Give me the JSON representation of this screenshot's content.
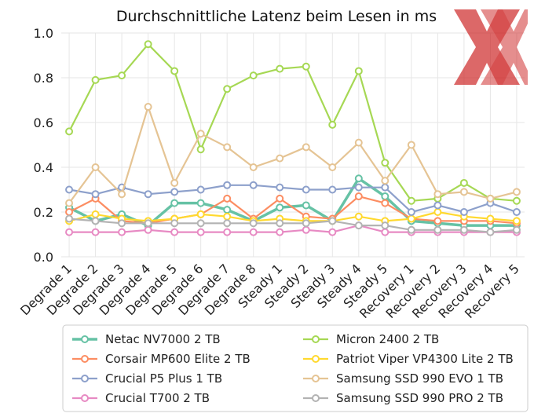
{
  "chart_data": {
    "type": "line",
    "title": "Durchschnittliche Latenz beim Lesen in ms",
    "xlabel": "",
    "ylabel": "",
    "ylim": [
      0,
      1.0
    ],
    "yticks": [
      "0.0",
      "0.2",
      "0.4",
      "0.6",
      "0.8",
      "1.0"
    ],
    "grid": true,
    "legend_position": "bottom",
    "categories": [
      "Degrade 1",
      "Degrade 2",
      "Degrade 3",
      "Degrade 4",
      "Degrade 5",
      "Degrade 6",
      "Degrade 7",
      "Degrade 8",
      "Steady 1",
      "Steady 2",
      "Steady 3",
      "Steady 4",
      "Steady 5",
      "Recovery 1",
      "Recovery 2",
      "Recovery 3",
      "Recovery 4",
      "Recovery 5"
    ],
    "series": [
      {
        "name": "Netac NV7000 2 TB",
        "color": "#66c2a5",
        "width": 3.5,
        "values": [
          0.22,
          0.16,
          0.19,
          0.14,
          0.24,
          0.24,
          0.21,
          0.16,
          0.22,
          0.23,
          0.16,
          0.35,
          0.27,
          0.16,
          0.15,
          0.14,
          0.14,
          0.14
        ]
      },
      {
        "name": "Micron 2400 2 TB",
        "color": "#a6d854",
        "width": 2.2,
        "values": [
          0.56,
          0.79,
          0.81,
          0.95,
          0.83,
          0.48,
          0.75,
          0.81,
          0.84,
          0.85,
          0.59,
          0.83,
          0.42,
          0.25,
          0.26,
          0.33,
          0.26,
          0.25
        ]
      },
      {
        "name": "Corsair MP600 Elite 2 TB",
        "color": "#fc8d62",
        "width": 2.2,
        "values": [
          0.2,
          0.26,
          0.16,
          0.15,
          0.17,
          0.19,
          0.26,
          0.17,
          0.26,
          0.18,
          0.17,
          0.27,
          0.24,
          0.17,
          0.16,
          0.16,
          0.16,
          0.15
        ]
      },
      {
        "name": "Patriot Viper VP4300 Lite 2 TB",
        "color": "#ffd92f",
        "width": 2.2,
        "values": [
          0.16,
          0.19,
          0.17,
          0.16,
          0.17,
          0.19,
          0.18,
          0.16,
          0.17,
          0.16,
          0.16,
          0.18,
          0.16,
          0.17,
          0.2,
          0.18,
          0.17,
          0.16
        ]
      },
      {
        "name": "Crucial P5 Plus 1 TB",
        "color": "#8da0cb",
        "width": 2.2,
        "values": [
          0.3,
          0.28,
          0.31,
          0.28,
          0.29,
          0.3,
          0.32,
          0.32,
          0.31,
          0.3,
          0.3,
          0.31,
          0.31,
          0.2,
          0.23,
          0.2,
          0.24,
          0.2
        ]
      },
      {
        "name": "Samsung SSD 990 EVO 1 TB",
        "color": "#e5c494",
        "width": 2.2,
        "values": [
          0.24,
          0.4,
          0.28,
          0.67,
          0.33,
          0.55,
          0.49,
          0.4,
          0.44,
          0.49,
          0.4,
          0.51,
          0.34,
          0.5,
          0.28,
          0.29,
          0.26,
          0.29
        ]
      },
      {
        "name": "Crucial T700 2 TB",
        "color": "#e78ac3",
        "width": 2.2,
        "values": [
          0.11,
          0.11,
          0.11,
          0.12,
          0.11,
          0.11,
          0.11,
          0.11,
          0.11,
          0.12,
          0.11,
          0.14,
          0.11,
          0.11,
          0.11,
          0.11,
          0.11,
          0.11
        ]
      },
      {
        "name": "Samsung SSD 990 PRO 2 TB",
        "color": "#b3b3b3",
        "width": 2.2,
        "values": [
          0.17,
          0.16,
          0.15,
          0.15,
          0.15,
          0.15,
          0.15,
          0.15,
          0.15,
          0.15,
          0.16,
          0.14,
          0.14,
          0.12,
          0.12,
          0.12,
          0.11,
          0.12
        ]
      }
    ]
  },
  "watermark": {
    "color": "#cc2222",
    "icon": "xx-logo-icon"
  }
}
